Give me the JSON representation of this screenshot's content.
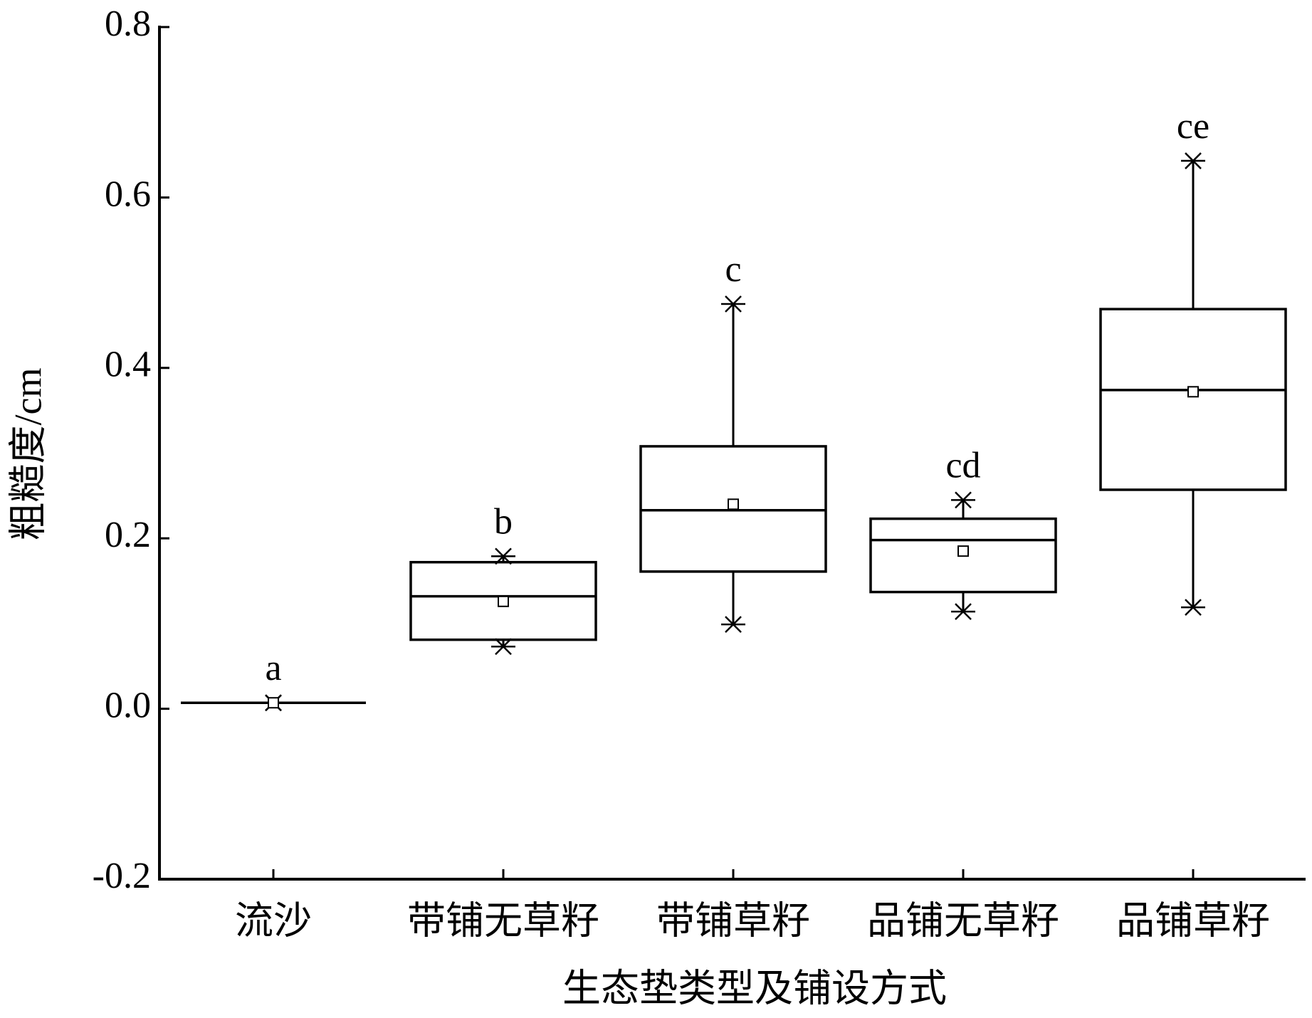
{
  "chart_data": {
    "type": "box",
    "xlabel": "生态垫类型及铺设方式",
    "ylabel": "粗糙度/cm",
    "categories": [
      "流沙",
      "带铺无草籽",
      "带铺草籽",
      "品铺无草籽",
      "品铺草籽"
    ],
    "min": [
      0.007,
      0.073,
      0.099,
      0.114,
      0.119
    ],
    "q1": [
      0.007,
      0.081,
      0.161,
      0.137,
      0.257
    ],
    "median": [
      0.007,
      0.132,
      0.233,
      0.198,
      0.374
    ],
    "q3": [
      0.007,
      0.172,
      0.308,
      0.223,
      0.469
    ],
    "max": [
      0.007,
      0.179,
      0.475,
      0.245,
      0.643
    ],
    "mean": [
      0.007,
      0.126,
      0.24,
      0.185,
      0.372
    ],
    "annotations": [
      "a",
      "b",
      "c",
      "cd",
      "ce"
    ],
    "color": "#000000",
    "ylim": [
      -0.2,
      0.8
    ],
    "yticks": [
      -0.2,
      {
        "value": 0,
        "label": "0.0"
      },
      0.2,
      0.4,
      0.6,
      0.8
    ]
  }
}
